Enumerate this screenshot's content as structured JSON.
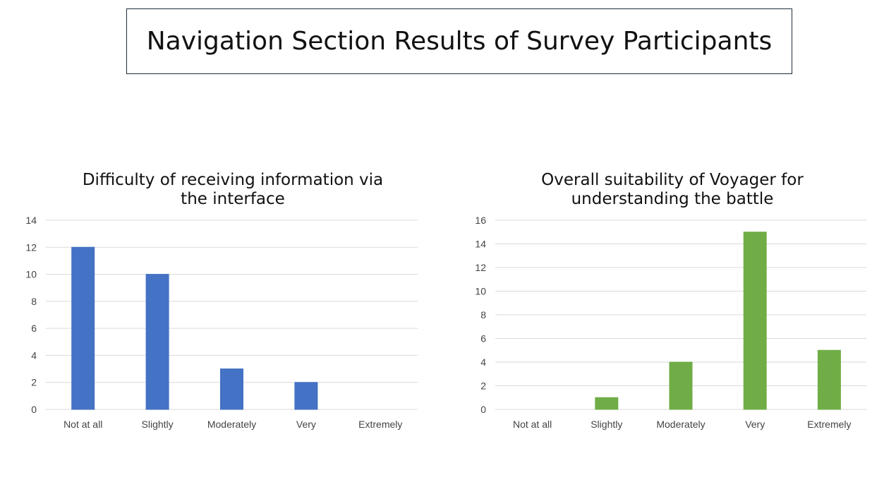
{
  "page": {
    "title": "Navigation Section Results of Survey Participants"
  },
  "colors": {
    "chart1_bar": "#4472c4",
    "chart2_bar": "#70ad47",
    "gridline": "#d9d9d9"
  },
  "chart_data": [
    {
      "type": "bar",
      "title_lines": [
        "Difficulty of receiving information via",
        "the interface"
      ],
      "categories": [
        "Not at all",
        "Slightly",
        "Moderately",
        "Very",
        "Extremely"
      ],
      "values": [
        12,
        10,
        3,
        2,
        0
      ],
      "ylim": [
        0,
        14
      ],
      "yticks": [
        0,
        2,
        4,
        6,
        8,
        10,
        12,
        14
      ],
      "grid": true,
      "legend": "none"
    },
    {
      "type": "bar",
      "title_lines": [
        "Overall suitability of Voyager for",
        "understanding the battle"
      ],
      "categories": [
        "Not at all",
        "Slightly",
        "Moderately",
        "Very",
        "Extremely"
      ],
      "values": [
        0,
        1,
        4,
        15,
        5
      ],
      "ylim": [
        0,
        16
      ],
      "yticks": [
        0,
        2,
        4,
        6,
        8,
        10,
        12,
        14,
        16
      ],
      "grid": true,
      "legend": "none"
    }
  ]
}
